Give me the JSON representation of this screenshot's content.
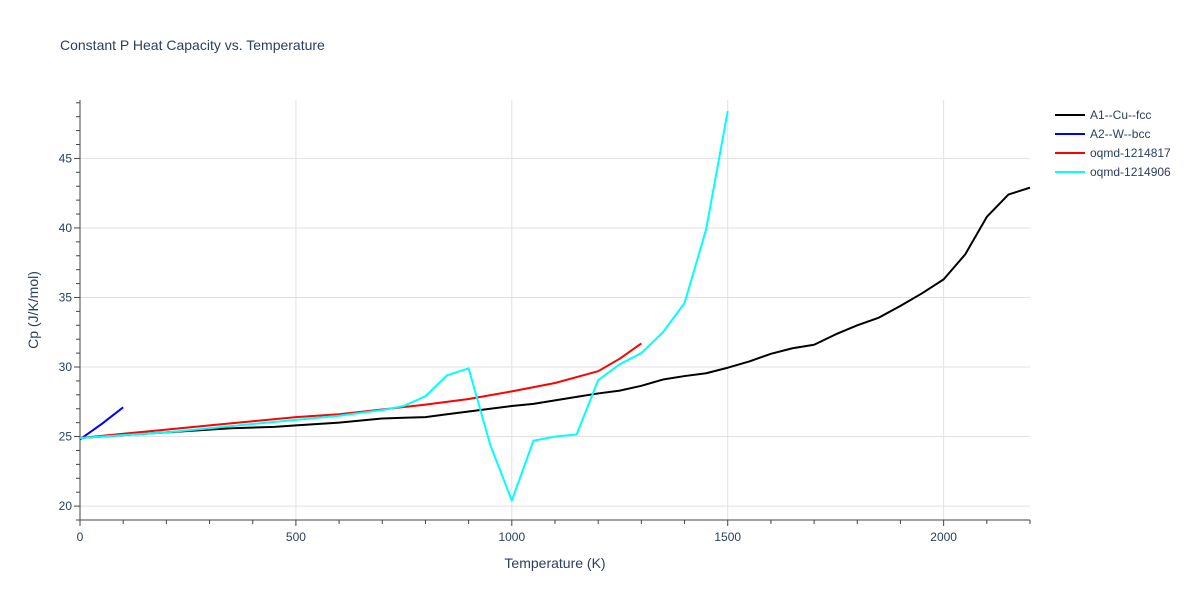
{
  "chart_data": {
    "type": "line",
    "title": "Constant P Heat Capacity vs. Temperature",
    "xlabel": "Temperature (K)",
    "ylabel": "Cp (J/K/mol)",
    "xlim": [
      0,
      2200
    ],
    "ylim": [
      19,
      49.2
    ],
    "xticks": [
      0,
      500,
      1000,
      1500,
      2000
    ],
    "yticks": [
      20,
      25,
      30,
      35,
      40,
      45
    ],
    "grid": true,
    "legend_position": "top-right",
    "series": [
      {
        "name": "A1--Cu--fcc",
        "color": "#000000",
        "x": [
          0,
          100,
          200,
          300,
          350,
          450,
          500,
          600,
          700,
          750,
          800,
          850,
          900,
          950,
          1000,
          1050,
          1100,
          1150,
          1200,
          1250,
          1300,
          1350,
          1400,
          1450,
          1500,
          1550,
          1600,
          1650,
          1700,
          1750,
          1800,
          1850,
          1900,
          1950,
          2000,
          2050,
          2100,
          2150,
          2200
        ],
        "y": [
          24.9,
          25.1,
          25.3,
          25.5,
          25.6,
          25.7,
          25.8,
          26.0,
          26.3,
          26.35,
          26.4,
          26.6,
          26.8,
          27.0,
          27.2,
          27.35,
          27.6,
          27.85,
          28.1,
          28.3,
          28.65,
          29.1,
          29.35,
          29.55,
          29.95,
          30.4,
          30.95,
          31.35,
          31.6,
          32.35,
          33.0,
          33.55,
          34.4,
          35.3,
          36.3,
          38.1,
          40.8,
          42.4,
          42.9
        ]
      },
      {
        "name": "A2--W--bcc",
        "color": "#0000ff",
        "x": [
          0,
          50,
          100
        ],
        "y": [
          24.8,
          25.9,
          27.1
        ]
      },
      {
        "name": "oqmd-1214817",
        "color": "#ff0000",
        "x": [
          0,
          100,
          200,
          300,
          400,
          500,
          600,
          700,
          800,
          900,
          1000,
          1100,
          1200,
          1250,
          1300
        ],
        "y": [
          24.9,
          25.2,
          25.5,
          25.8,
          26.1,
          26.4,
          26.6,
          26.95,
          27.3,
          27.7,
          28.25,
          28.85,
          29.7,
          30.6,
          31.7
        ]
      },
      {
        "name": "oqmd-1214906",
        "color": "#00ffff",
        "x": [
          0,
          100,
          200,
          300,
          400,
          500,
          600,
          650,
          700,
          750,
          800,
          850,
          900,
          950,
          1000,
          1050,
          1100,
          1150,
          1200,
          1250,
          1300,
          1350,
          1400,
          1450,
          1500
        ],
        "y": [
          24.9,
          25.1,
          25.3,
          25.6,
          25.9,
          26.2,
          26.5,
          26.7,
          26.9,
          27.2,
          27.9,
          29.4,
          29.9,
          24.4,
          20.4,
          24.7,
          25.0,
          25.15,
          29.05,
          30.2,
          31.0,
          32.5,
          34.6,
          39.9,
          48.4
        ]
      }
    ]
  }
}
